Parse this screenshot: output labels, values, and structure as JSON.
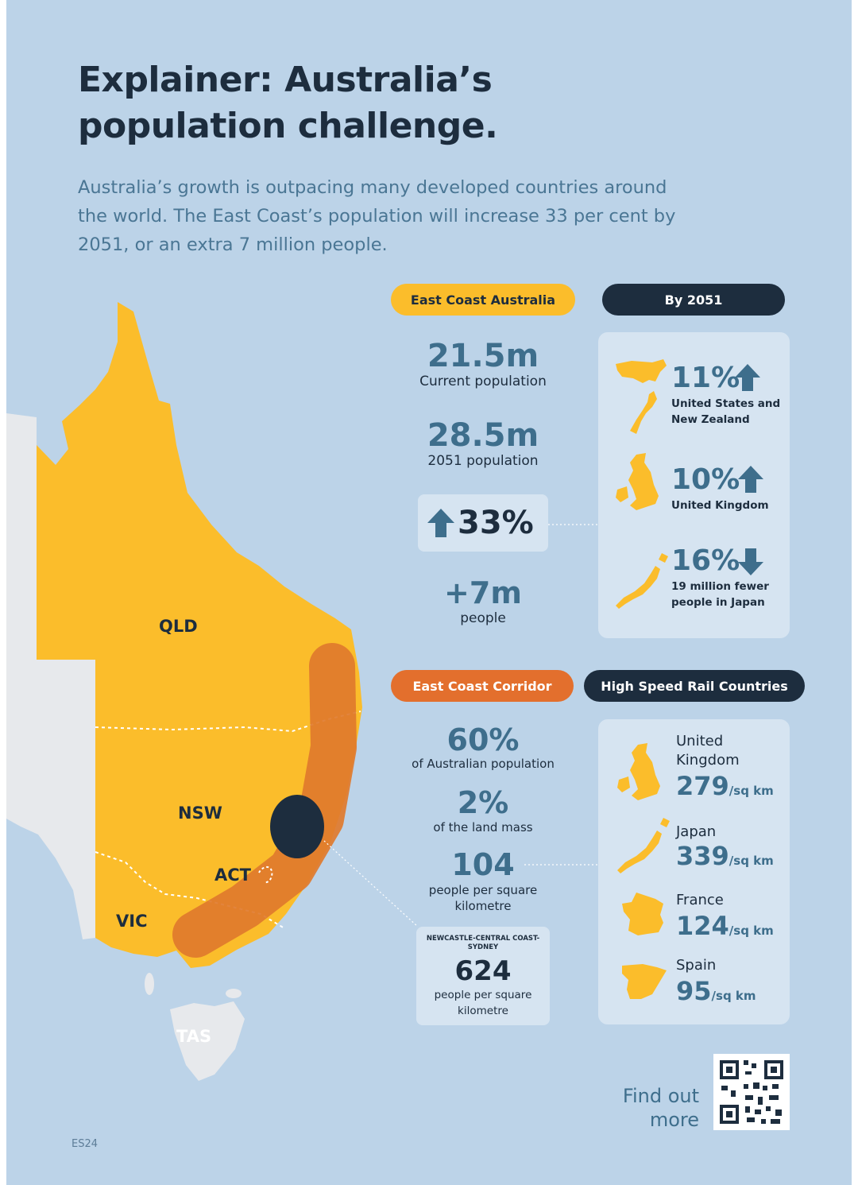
{
  "title": "Explainer: Australia’s population challenge.",
  "intro": "Australia’s growth is outpacing many developed countries around the world. The East Coast’s population will increase 33 per cent by 2051, or an extra 7 million people.",
  "colors": {
    "background": "#bcd3e8",
    "yellow": "#fbbd2b",
    "orange": "#e36f2d",
    "navy": "#1d2d3e",
    "teal": "#3e6e8c",
    "panel": "#d6e4f1"
  },
  "map": {
    "states": {
      "qld": "QLD",
      "nsw": "NSW",
      "act": "ACT",
      "vic": "VIC",
      "tas": "TAS"
    }
  },
  "east_coast": {
    "heading": "East Coast Australia",
    "current_value": "21.5m",
    "current_label": "Current population",
    "future_value": "28.5m",
    "future_label": "2051 population",
    "growth_value": "33%",
    "growth_direction": "up",
    "extra_value": "+7m",
    "extra_label": "people"
  },
  "by_2051": {
    "heading": "By 2051",
    "items": [
      {
        "value": "11%",
        "direction": "up",
        "label": "United States and New Zealand",
        "icon": "usa-nz-map-icon"
      },
      {
        "value": "10%",
        "direction": "up",
        "label": "United Kingdom",
        "icon": "uk-map-icon"
      },
      {
        "value": "16%",
        "direction": "down",
        "label": "19 million fewer people in Japan",
        "icon": "japan-map-icon"
      }
    ]
  },
  "corridor": {
    "heading": "East Coast Corridor",
    "share_value": "60%",
    "share_label": "of Australian population",
    "land_value": "2%",
    "land_label": "of the land mass",
    "density_value": "104",
    "density_label": "people per square kilometre",
    "callout_region": "NEWCASTLE-CENTRAL COAST-SYDNEY",
    "callout_value": "624",
    "callout_label": "people per square kilometre"
  },
  "hsr": {
    "heading": "High Speed Rail Countries",
    "unit": "/sq km",
    "countries": [
      {
        "name": "United Kingdom",
        "value": "279",
        "icon": "uk-map-icon"
      },
      {
        "name": "Japan",
        "value": "339",
        "icon": "japan-map-icon"
      },
      {
        "name": "France",
        "value": "124",
        "icon": "france-map-icon"
      },
      {
        "name": "Spain",
        "value": "95",
        "icon": "spain-map-icon"
      }
    ]
  },
  "find_out_more": "Find out more",
  "page_code": "ES24"
}
